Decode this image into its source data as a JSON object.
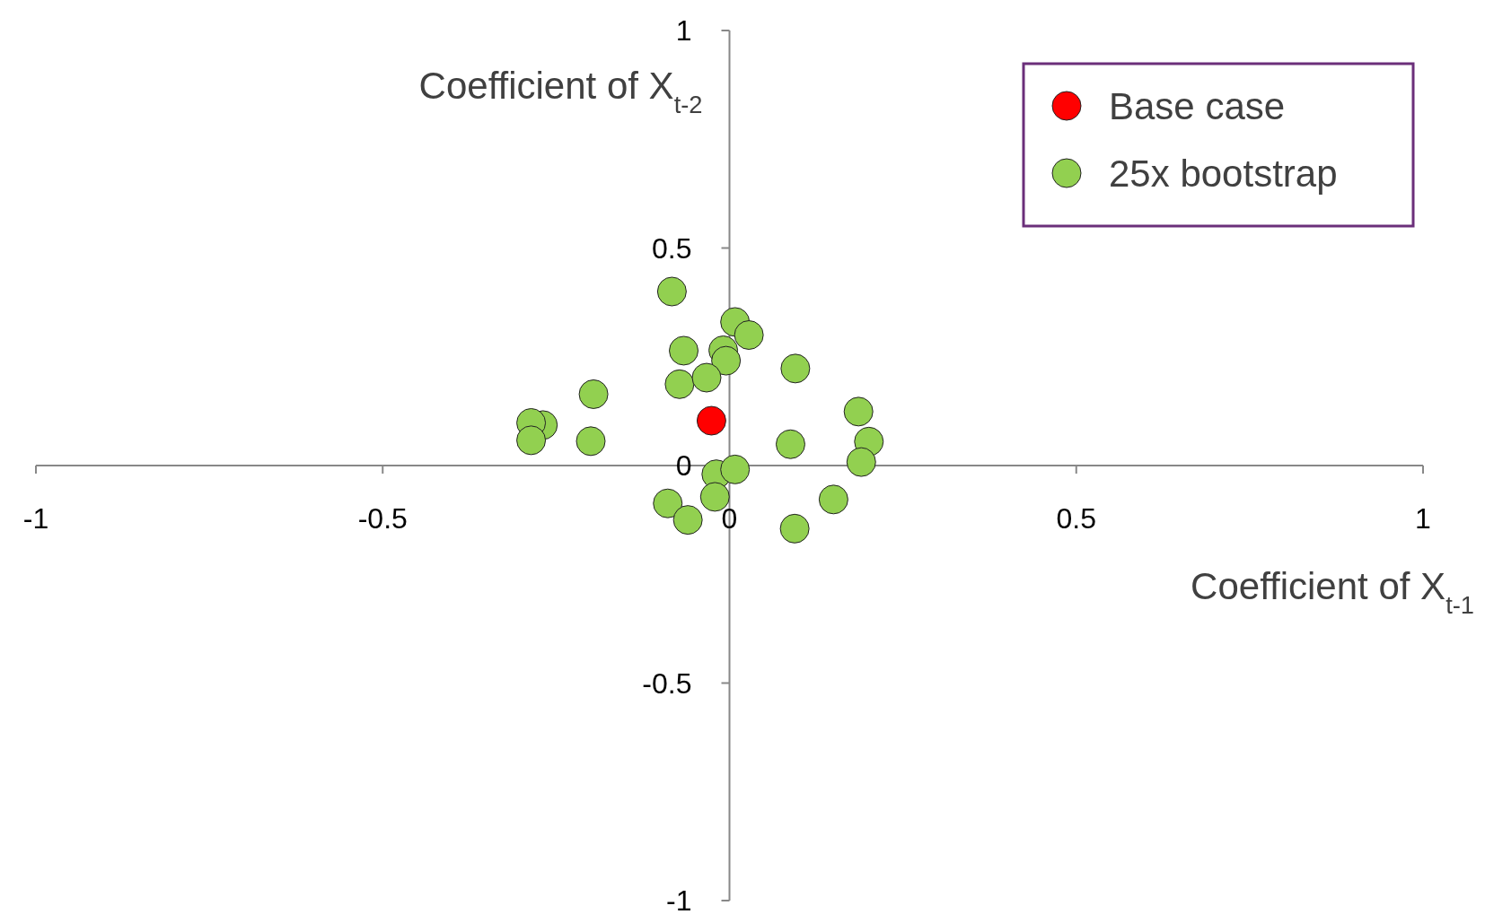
{
  "chart_data": {
    "type": "scatter",
    "xlabel": "Coefficient of X$_{t-1}$",
    "ylabel": "Coefficient of X$_{t-2}$",
    "xlim": [
      -1,
      1
    ],
    "ylim": [
      -1,
      1
    ],
    "xticks": [
      -1,
      -0.5,
      0,
      0.5,
      1
    ],
    "yticks": [
      -1,
      -0.5,
      0,
      0.5,
      1
    ],
    "grid": false,
    "legend": "top right",
    "marker": "circle",
    "series": [
      {
        "name": "Base case",
        "color": "#ff0000",
        "x": [
          -0.026
        ],
        "values": [
          0.103
        ]
      },
      {
        "name": "25x bootstrap",
        "color": "#92d050",
        "x": [
          -0.083,
          0.008,
          0.028,
          -0.066,
          -0.009,
          -0.005,
          0.095,
          -0.072,
          -0.033,
          -0.196,
          -0.269,
          -0.286,
          -0.286,
          -0.2,
          0.088,
          0.186,
          0.201,
          0.19,
          -0.019,
          0.008,
          -0.021,
          -0.089,
          -0.06,
          0.15,
          0.094
        ],
        "values": [
          0.4,
          0.33,
          0.3,
          0.264,
          0.265,
          0.241,
          0.223,
          0.187,
          0.202,
          0.164,
          0.093,
          0.098,
          0.058,
          0.056,
          0.049,
          0.124,
          0.055,
          0.008,
          -0.02,
          -0.009,
          -0.072,
          -0.087,
          -0.125,
          -0.078,
          -0.145
        ]
      }
    ]
  }
}
